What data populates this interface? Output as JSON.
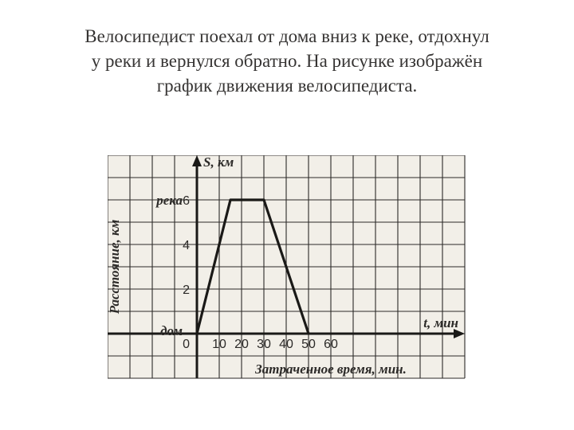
{
  "title_lines": [
    "Велосипедист поехал от дома вниз к реке, отдохнул",
    "у реки и вернулся обратно. На рисунке изображён",
    "график движения велосипедиста."
  ],
  "chart": {
    "type": "line",
    "background_color": "#f2efe8",
    "grid_color": "#2c2a28",
    "axis_color": "#1a1917",
    "line_color": "#1a1917",
    "text_color": "#2c2a28",
    "grid_stroke": 1.1,
    "axis_stroke": 3,
    "data_stroke": 3.2,
    "cell": 28,
    "cols": 16,
    "rows": 10,
    "origin_col": 4,
    "origin_row": 8,
    "x_per_cell": 10,
    "y_per_cell": 1,
    "x_ticks": [
      10,
      20,
      30,
      40,
      50,
      60
    ],
    "y_ticks": [
      2,
      4,
      6
    ],
    "y_axis_top_label": "S, км",
    "x_axis_right_label": "t, мин",
    "origin_label": "0",
    "y_side_label": "Расстояние, км",
    "x_bottom_label": "Затраченное время, мин.",
    "river_label": "река",
    "home_label": "дом",
    "river_y": 6,
    "data_points": [
      {
        "x": 0,
        "y": 0
      },
      {
        "x": 15,
        "y": 6
      },
      {
        "x": 30,
        "y": 6
      },
      {
        "x": 50,
        "y": 0
      }
    ],
    "label_fontsize": 16,
    "ital_fontsize": 17
  }
}
